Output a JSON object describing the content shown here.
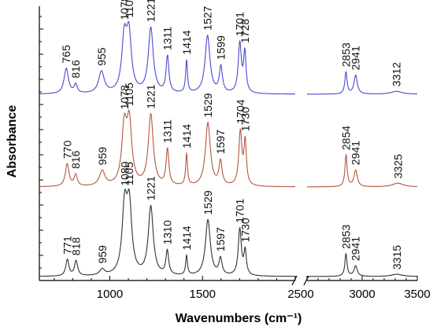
{
  "chart_data": {
    "type": "line",
    "title": "",
    "xlabel": "Wavenumbers (cm⁻¹)",
    "ylabel": "Absorbance",
    "axis_break": [
      2000,
      2500
    ],
    "segments": [
      {
        "xlim": [
          620,
          2000
        ],
        "ticks": [
          1000,
          1500,
          2000
        ]
      },
      {
        "xlim": [
          2500,
          3500
        ],
        "ticks": [
          2500,
          3000,
          3500
        ]
      }
    ],
    "series": [
      {
        "color": "#4a4ad0",
        "offset": 2,
        "peaks": [
          {
            "x": 765,
            "h": 0.35,
            "w": 14,
            "label": "765"
          },
          {
            "x": 816,
            "h": 0.12,
            "w": 10,
            "label": "816"
          },
          {
            "x": 955,
            "h": 0.3,
            "w": 18,
            "label": "955"
          },
          {
            "x": 1078,
            "h": 0.72,
            "w": 16,
            "label": "1078"
          },
          {
            "x": 1103,
            "h": 0.76,
            "w": 16,
            "label": "1103"
          },
          {
            "x": 1221,
            "h": 0.9,
            "w": 16,
            "label": "1221"
          },
          {
            "x": 1311,
            "h": 0.5,
            "w": 9,
            "label": "1311"
          },
          {
            "x": 1414,
            "h": 0.45,
            "w": 6,
            "label": "1414"
          },
          {
            "x": 1527,
            "h": 0.8,
            "w": 16,
            "label": "1527"
          },
          {
            "x": 1599,
            "h": 0.36,
            "w": 10,
            "label": "1599"
          },
          {
            "x": 1701,
            "h": 0.68,
            "w": 10,
            "label": "1701"
          },
          {
            "x": 1728,
            "h": 0.55,
            "w": 8,
            "label": "1728"
          },
          {
            "x": 2853,
            "h": 0.3,
            "w": 12,
            "label": "2853"
          },
          {
            "x": 2941,
            "h": 0.26,
            "w": 18,
            "label": "2941"
          },
          {
            "x": 3312,
            "h": 0.04,
            "w": 60,
            "label": "3312"
          }
        ]
      },
      {
        "color": "#b5563f",
        "offset": 1,
        "peaks": [
          {
            "x": 770,
            "h": 0.3,
            "w": 12,
            "label": "770"
          },
          {
            "x": 816,
            "h": 0.15,
            "w": 10,
            "label": "816"
          },
          {
            "x": 959,
            "h": 0.2,
            "w": 18,
            "label": "959"
          },
          {
            "x": 1078,
            "h": 0.75,
            "w": 16,
            "label": "1078"
          },
          {
            "x": 1105,
            "h": 0.8,
            "w": 16,
            "label": "1105"
          },
          {
            "x": 1221,
            "h": 0.95,
            "w": 16,
            "label": "1221"
          },
          {
            "x": 1311,
            "h": 0.48,
            "w": 9,
            "label": "1311"
          },
          {
            "x": 1414,
            "h": 0.42,
            "w": 6,
            "label": "1414"
          },
          {
            "x": 1529,
            "h": 0.85,
            "w": 16,
            "label": "1529"
          },
          {
            "x": 1597,
            "h": 0.32,
            "w": 10,
            "label": "1597"
          },
          {
            "x": 1704,
            "h": 0.72,
            "w": 10,
            "label": "1704"
          },
          {
            "x": 1730,
            "h": 0.58,
            "w": 8,
            "label": "1730"
          },
          {
            "x": 2854,
            "h": 0.42,
            "w": 12,
            "label": "2854"
          },
          {
            "x": 2941,
            "h": 0.22,
            "w": 18,
            "label": "2941"
          },
          {
            "x": 3325,
            "h": 0.05,
            "w": 60,
            "label": "3325"
          }
        ]
      },
      {
        "color": "#333333",
        "offset": 0,
        "peaks": [
          {
            "x": 771,
            "h": 0.22,
            "w": 10,
            "label": "771"
          },
          {
            "x": 818,
            "h": 0.2,
            "w": 10,
            "label": "818"
          },
          {
            "x": 959,
            "h": 0.08,
            "w": 16,
            "label": "959"
          },
          {
            "x": 1080,
            "h": 0.88,
            "w": 16,
            "label": "1080"
          },
          {
            "x": 1105,
            "h": 0.88,
            "w": 16,
            "label": "1105"
          },
          {
            "x": 1221,
            "h": 0.92,
            "w": 16,
            "label": "1221"
          },
          {
            "x": 1310,
            "h": 0.32,
            "w": 9,
            "label": "1310"
          },
          {
            "x": 1414,
            "h": 0.26,
            "w": 6,
            "label": "1414"
          },
          {
            "x": 1529,
            "h": 0.75,
            "w": 16,
            "label": "1529"
          },
          {
            "x": 1597,
            "h": 0.22,
            "w": 10,
            "label": "1597"
          },
          {
            "x": 1701,
            "h": 0.62,
            "w": 10,
            "label": "1701"
          },
          {
            "x": 1730,
            "h": 0.32,
            "w": 8,
            "label": "1730"
          },
          {
            "x": 2853,
            "h": 0.3,
            "w": 12,
            "label": "2853"
          },
          {
            "x": 2941,
            "h": 0.14,
            "w": 18,
            "label": "2941"
          },
          {
            "x": 3315,
            "h": 0.03,
            "w": 60,
            "label": "3315"
          }
        ]
      }
    ]
  }
}
